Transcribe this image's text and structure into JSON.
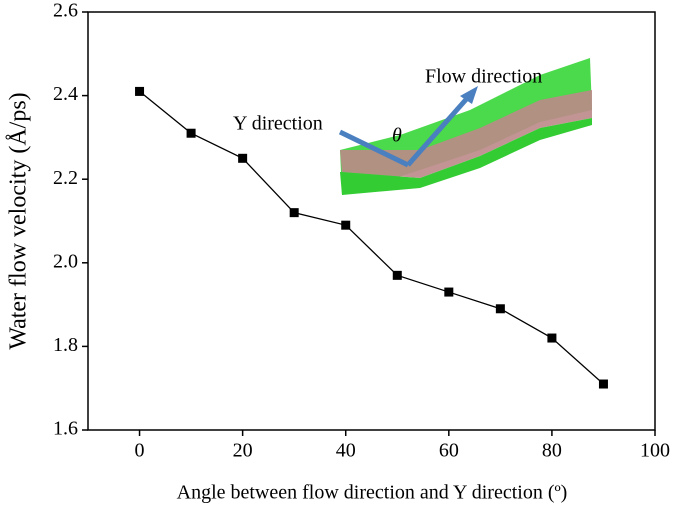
{
  "chart_data": {
    "type": "line",
    "x_label": "Angle between flow direction and Y direction (º)",
    "y_label": "Water flow velocity (Å/ps)",
    "x": [
      0,
      10,
      20,
      30,
      40,
      50,
      60,
      70,
      80,
      90
    ],
    "series": [
      {
        "color": "#000000",
        "values": [
          2.41,
          2.31,
          2.25,
          2.12,
          2.09,
          1.97,
          1.93,
          1.89,
          1.82,
          1.71
        ]
      }
    ],
    "xlim": [
      -10,
      100
    ],
    "xticks": [
      0,
      20,
      40,
      60,
      80,
      100
    ],
    "ylim": [
      1.6,
      2.6
    ],
    "yticks": [
      1.6,
      1.8,
      {
        "value": 2,
        "label": "2.0"
      },
      2.2,
      2.4,
      2.6
    ],
    "annotations": [
      "Flow direction",
      "Y direction",
      "θ"
    ]
  }
}
